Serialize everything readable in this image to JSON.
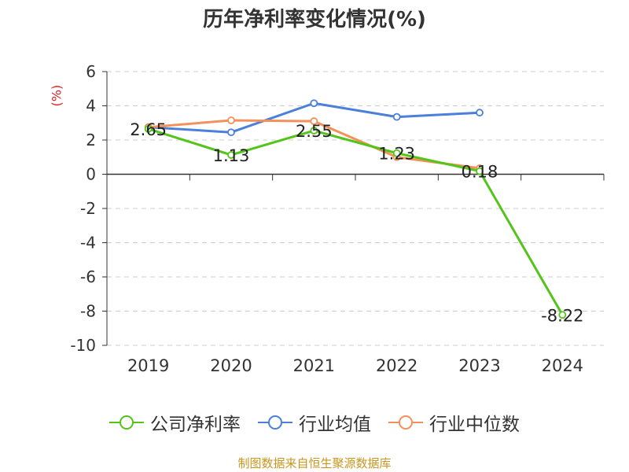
{
  "chart_data": {
    "type": "line",
    "title": "历年净利率变化情况(%)",
    "ylabel": "(%)",
    "categories": [
      "2019",
      "2020",
      "2021",
      "2022",
      "2023",
      "2024"
    ],
    "ylim": [
      -10,
      6
    ],
    "yticks": [
      6,
      4,
      2,
      0,
      -2,
      -4,
      -6,
      -8,
      -10
    ],
    "grid": true,
    "legend_position": "bottom",
    "series": [
      {
        "name": "公司净利率",
        "color": "#52c41a",
        "values": [
          2.65,
          1.13,
          2.55,
          1.23,
          0.18,
          -8.22
        ],
        "labels": [
          "2.65",
          "1.13",
          "2.55",
          "1.23",
          "0.18",
          "-8.22"
        ]
      },
      {
        "name": "行业均值",
        "color": "#4a7fdc",
        "values": [
          2.75,
          2.45,
          4.15,
          3.35,
          3.6,
          null
        ]
      },
      {
        "name": "行业中位数",
        "color": "#f4915a",
        "values": [
          2.75,
          3.15,
          3.1,
          1.0,
          0.35,
          null
        ]
      }
    ]
  },
  "source_text": "制图数据来自恒生聚源数据库"
}
